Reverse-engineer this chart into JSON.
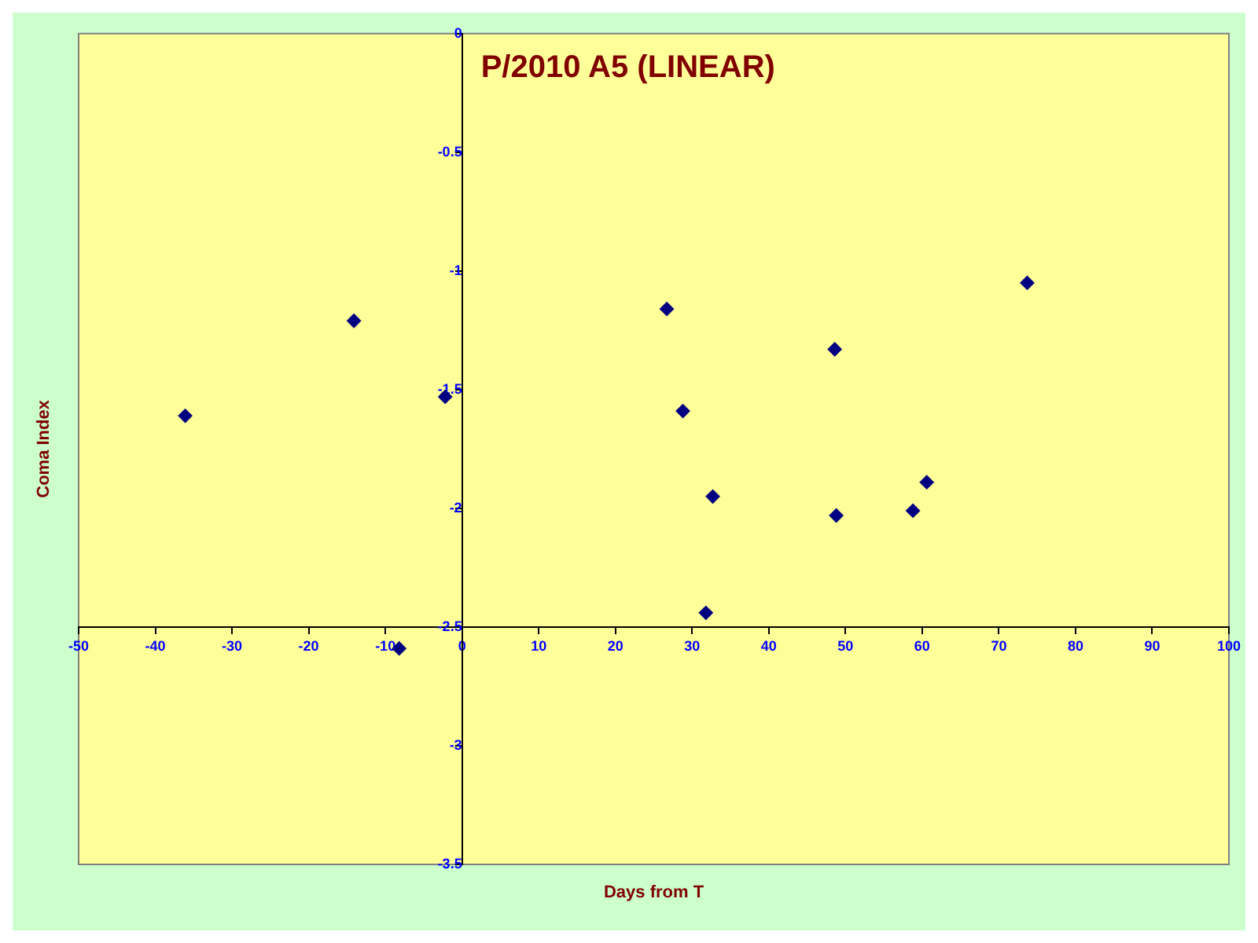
{
  "chart_data": {
    "type": "scatter",
    "title": "P/2010 A5 (LINEAR)",
    "xlabel": "Days from T",
    "ylabel": "Coma Index",
    "series": [
      {
        "color": "#000080",
        "x": [
          -36.1,
          -14.1,
          -2.2,
          -8.2,
          26.7,
          28.8,
          32.7,
          31.8,
          48.6,
          48.8,
          58.8,
          60.6,
          73.7
        ],
        "values": [
          -1.61,
          -1.21,
          -1.53,
          -2.59,
          -1.16,
          -1.59,
          -1.95,
          -2.44,
          -1.33,
          -2.03,
          -2.01,
          -1.89,
          -1.05
        ]
      }
    ],
    "xlim": [
      -50,
      100
    ],
    "xticks": [
      -50,
      -40,
      -30,
      -20,
      -10,
      0,
      10,
      20,
      30,
      40,
      50,
      60,
      70,
      80,
      90,
      100
    ],
    "ylim": [
      -3.5,
      0
    ],
    "yticks": [
      -3.5,
      -3,
      -2.5,
      -2,
      -1.5,
      -1,
      -0.5,
      0
    ],
    "grid": false,
    "legend": false,
    "marker": "diamond"
  }
}
